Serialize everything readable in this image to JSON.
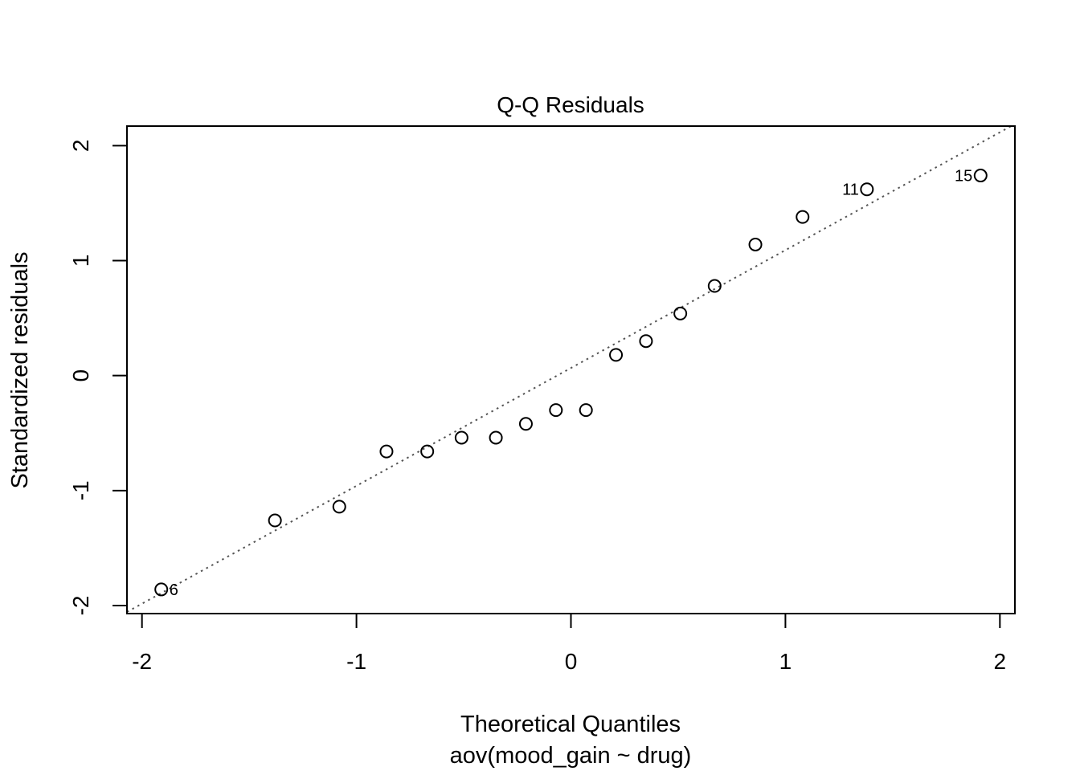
{
  "chart_data": {
    "type": "scatter",
    "title": "Q-Q Residuals",
    "xlabel": "Theoretical Quantiles",
    "subtitle": "aov(mood_gain ~ drug)",
    "ylabel": "Standardized residuals",
    "xlim": [
      -2.07,
      2.07
    ],
    "ylim": [
      -2.07,
      2.17
    ],
    "x_ticks": [
      -2,
      -1,
      0,
      1,
      2
    ],
    "y_ticks": [
      -2,
      -1,
      0,
      1,
      2
    ],
    "x_tick_labels": [
      "-2",
      "-1",
      "0",
      "1",
      "2"
    ],
    "y_tick_labels": [
      "-2",
      "-1",
      "0",
      "1",
      "2"
    ],
    "points": [
      {
        "x": -1.91,
        "y": -1.86,
        "label": "6"
      },
      {
        "x": -1.38,
        "y": -1.26,
        "label": ""
      },
      {
        "x": -1.08,
        "y": -1.14,
        "label": ""
      },
      {
        "x": -0.86,
        "y": -0.66,
        "label": ""
      },
      {
        "x": -0.67,
        "y": -0.66,
        "label": ""
      },
      {
        "x": -0.51,
        "y": -0.54,
        "label": ""
      },
      {
        "x": -0.35,
        "y": -0.54,
        "label": ""
      },
      {
        "x": -0.21,
        "y": -0.42,
        "label": ""
      },
      {
        "x": -0.07,
        "y": -0.3,
        "label": ""
      },
      {
        "x": 0.07,
        "y": -0.3,
        "label": ""
      },
      {
        "x": 0.21,
        "y": 0.18,
        "label": ""
      },
      {
        "x": 0.35,
        "y": 0.3,
        "label": ""
      },
      {
        "x": 0.51,
        "y": 0.54,
        "label": ""
      },
      {
        "x": 0.67,
        "y": 0.78,
        "label": ""
      },
      {
        "x": 0.86,
        "y": 1.14,
        "label": ""
      },
      {
        "x": 1.08,
        "y": 1.38,
        "label": ""
      },
      {
        "x": 1.38,
        "y": 1.62,
        "label": "11"
      },
      {
        "x": 1.91,
        "y": 1.74,
        "label": "15"
      }
    ],
    "reference_line": {
      "intercept": 0.066,
      "slope": 1.025,
      "style": "dotted",
      "color": "#555555"
    },
    "colors": {
      "points": "#000000",
      "frame": "#000000"
    }
  }
}
